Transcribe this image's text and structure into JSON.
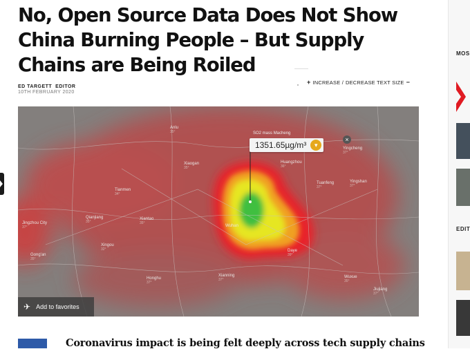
{
  "article": {
    "title": "No, Open Source Data Does Not Show China Burning People – But Supply Chains are Being Roiled",
    "author": "ED TARGETT",
    "role": "EDITOR",
    "date": "10TH FEBRUARY 2020"
  },
  "text_size": {
    "increase_label": "INCREASE /",
    "decrease_label": "DECREASE TEXT SIZE"
  },
  "map": {
    "tooltip_value": "1351.65µg/m³",
    "series_label": "SO2 mass",
    "place_label": "Macheng",
    "places": [
      {
        "name": "Anlu",
        "sub": "35°"
      },
      {
        "name": "Yingcheng",
        "sub": "37°"
      },
      {
        "name": "Xiaogan",
        "sub": "35°"
      },
      {
        "name": "Tianmen",
        "sub": "34°"
      },
      {
        "name": "Qianjiang",
        "sub": "35°"
      },
      {
        "name": "Xiantao",
        "sub": "35°"
      },
      {
        "name": "Jingzhou City",
        "sub": "37°"
      },
      {
        "name": "Gong'an",
        "sub": "35°"
      },
      {
        "name": "Xingou",
        "sub": "32°"
      },
      {
        "name": "Honghu",
        "sub": "37°"
      },
      {
        "name": "Xianning",
        "sub": "37°"
      },
      {
        "name": "Huangzhou",
        "sub": "36°"
      },
      {
        "name": "Tuanfeng",
        "sub": "37°"
      },
      {
        "name": "Daye",
        "sub": "39°"
      },
      {
        "name": "Wuxue",
        "sub": "35°"
      },
      {
        "name": "Jiujiang",
        "sub": "37°"
      },
      {
        "name": "Wuhan",
        "sub": ""
      },
      {
        "name": "Yingshan",
        "sub": "37°"
      }
    ],
    "favorite_label": "Add to favorites"
  },
  "teaser": {
    "headline": "Coronavirus impact is being felt deeply across tech supply chains"
  },
  "sidebar": {
    "most_label": "MOS",
    "edit_label": "EDIT"
  },
  "colors": {
    "accent_red": "#e01a22",
    "tooltip_chip": "#e6a81c",
    "teaser_blue": "#2d5aa8"
  }
}
